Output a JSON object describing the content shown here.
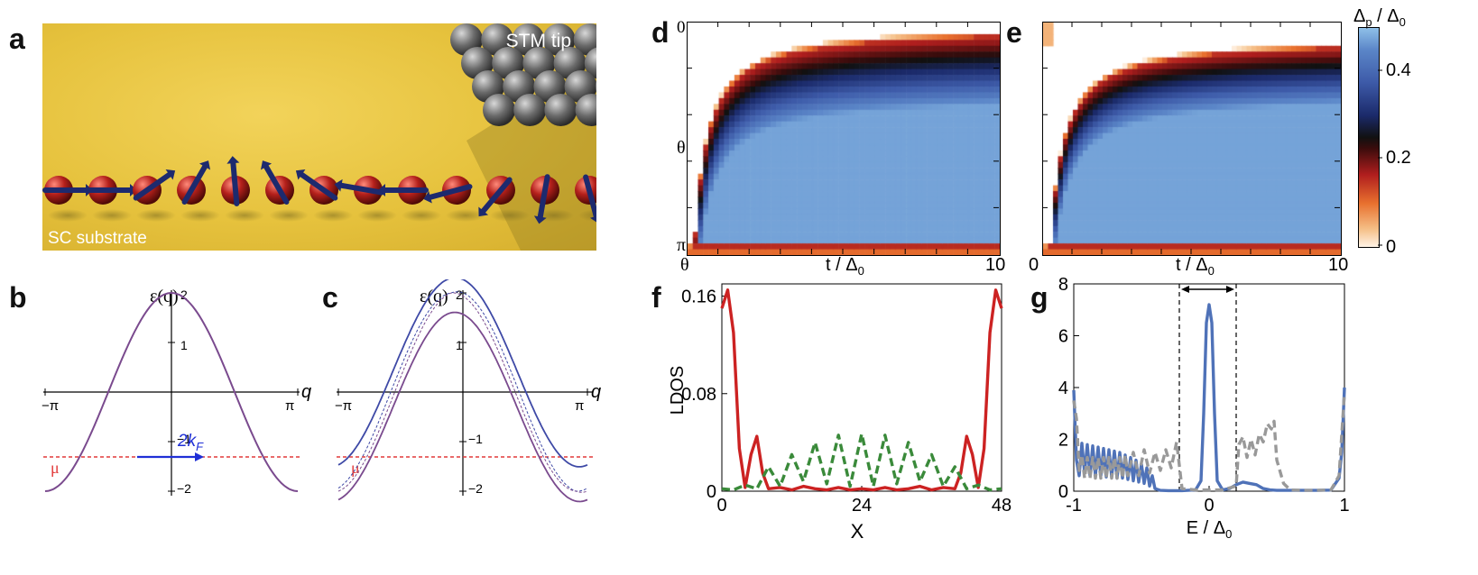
{
  "panels": {
    "a": "a",
    "b": "b",
    "c": "c",
    "d": "d",
    "e": "e",
    "f": "f",
    "g": "g"
  },
  "panel_a": {
    "tip_label": "STM tip",
    "substrate_label": "SC substrate",
    "spin_angles_deg": [
      0,
      0,
      35,
      60,
      95,
      120,
      145,
      170,
      180,
      195,
      230,
      260,
      285
    ]
  },
  "panel_b": {
    "ylabel": "ε(q)",
    "xlabel": "q",
    "x_ticks": [
      "−π",
      "π"
    ],
    "y_ticks": [
      "2",
      "1",
      "−1",
      "−2"
    ],
    "mu_label": "μ",
    "kf_label": "2k",
    "kf_sub": "F",
    "mu_value": -1.3
  },
  "panel_c": {
    "ylabel": "ε(q)",
    "xlabel": "q",
    "x_ticks": [
      "−π",
      "π"
    ],
    "y_ticks": [
      "2",
      "1",
      "−1",
      "−2"
    ],
    "mu_label": "μ",
    "mu_value": -1.3
  },
  "colorbar": {
    "title": "Δ",
    "title_sub1": "p",
    "title_mid": " / Δ",
    "title_sub2": "0",
    "ticks": [
      "0.4",
      "0.2",
      "0"
    ]
  },
  "panel_d": {
    "y_ticks": [
      "0",
      "θ",
      "π"
    ],
    "x_ticks": [
      "θ",
      "10"
    ],
    "xlabel": "t / Δ",
    "xlabel_sub": "0"
  },
  "panel_e": {
    "x_ticks": [
      "0",
      "10"
    ],
    "xlabel": "t / Δ",
    "xlabel_sub": "0"
  },
  "chart_data": [
    {
      "type": "line",
      "title": "f",
      "xlabel": "X",
      "ylabel": "LDOS",
      "x_ticks": [
        "0",
        "24",
        "48"
      ],
      "y_ticks": [
        "0",
        "0.08",
        "0.16"
      ],
      "xlim": [
        0,
        48
      ],
      "ylim": [
        0,
        0.17
      ],
      "series": [
        {
          "name": "red-solid",
          "color": "#cc2222",
          "style": "solid",
          "x": [
            0,
            1,
            2,
            3,
            4,
            5,
            6,
            7,
            8,
            10,
            12,
            14,
            16,
            18,
            20,
            22,
            24,
            26,
            28,
            30,
            32,
            34,
            36,
            38,
            40,
            41,
            42,
            43,
            44,
            45,
            46,
            47,
            48
          ],
          "values": [
            0.15,
            0.165,
            0.13,
            0.035,
            0.003,
            0.03,
            0.045,
            0.015,
            0.002,
            0.003,
            0.001,
            0.004,
            0.002,
            0.001,
            0.003,
            0.001,
            0.002,
            0.001,
            0.003,
            0.001,
            0.002,
            0.004,
            0.001,
            0.003,
            0.002,
            0.015,
            0.045,
            0.03,
            0.003,
            0.035,
            0.13,
            0.165,
            0.15
          ]
        },
        {
          "name": "green-dashed",
          "color": "#3a8a3a",
          "style": "dashed",
          "x": [
            0,
            2,
            4,
            6,
            8,
            10,
            12,
            14,
            16,
            18,
            20,
            22,
            24,
            26,
            28,
            30,
            32,
            34,
            36,
            38,
            40,
            42,
            44,
            46,
            48
          ],
          "values": [
            0.002,
            0.001,
            0.005,
            0.002,
            0.02,
            0.004,
            0.03,
            0.008,
            0.04,
            0.006,
            0.046,
            0.004,
            0.047,
            0.004,
            0.046,
            0.006,
            0.04,
            0.008,
            0.03,
            0.004,
            0.02,
            0.002,
            0.005,
            0.001,
            0.002
          ]
        }
      ]
    },
    {
      "type": "line",
      "title": "g",
      "xlabel": "E / Δ",
      "xlabel_sub": "0",
      "ylabel": "",
      "x_ticks": [
        "-1",
        "0",
        "1"
      ],
      "y_ticks": [
        "0",
        "2",
        "4",
        "6",
        "8"
      ],
      "xlim": [
        -1,
        1
      ],
      "ylim": [
        0,
        8
      ],
      "gap_markers": [
        -0.22,
        0.2
      ],
      "series": [
        {
          "name": "blue-solid",
          "color": "#4f72b8",
          "style": "solid",
          "x": [
            -1,
            -0.98,
            -0.96,
            -0.94,
            -0.92,
            -0.9,
            -0.88,
            -0.86,
            -0.84,
            -0.82,
            -0.8,
            -0.78,
            -0.76,
            -0.74,
            -0.72,
            -0.7,
            -0.68,
            -0.66,
            -0.64,
            -0.62,
            -0.6,
            -0.58,
            -0.56,
            -0.54,
            -0.52,
            -0.5,
            -0.48,
            -0.46,
            -0.44,
            -0.42,
            -0.4,
            -0.36,
            -0.3,
            -0.2,
            -0.1,
            -0.06,
            -0.04,
            -0.02,
            0,
            0.02,
            0.04,
            0.06,
            0.1,
            0.15,
            0.2,
            0.25,
            0.3,
            0.35,
            0.4,
            0.45,
            0.5,
            0.6,
            0.7,
            0.8,
            0.9,
            0.96,
            0.98,
            1
          ],
          "values": [
            3.9,
            1.2,
            0.6,
            1.85,
            0.7,
            1.8,
            0.6,
            1.75,
            0.6,
            1.7,
            0.6,
            1.65,
            0.55,
            1.6,
            0.55,
            1.55,
            0.5,
            1.5,
            0.5,
            1.4,
            0.45,
            1.3,
            0.4,
            1.2,
            0.35,
            1.05,
            0.3,
            0.9,
            0.2,
            0.6,
            0.1,
            0.03,
            0.02,
            0.02,
            0.05,
            0.4,
            3.0,
            6.5,
            7.2,
            6.5,
            3.0,
            0.4,
            0.05,
            0.1,
            0.25,
            0.35,
            0.3,
            0.25,
            0.1,
            0.05,
            0.03,
            0.03,
            0.03,
            0.03,
            0.04,
            0.5,
            1.5,
            4.0
          ]
        },
        {
          "name": "grey-dashed",
          "color": "#999999",
          "style": "dashed",
          "x": [
            -1,
            -0.98,
            -0.96,
            -0.94,
            -0.92,
            -0.9,
            -0.88,
            -0.86,
            -0.84,
            -0.82,
            -0.8,
            -0.78,
            -0.76,
            -0.74,
            -0.72,
            -0.7,
            -0.68,
            -0.66,
            -0.64,
            -0.62,
            -0.6,
            -0.56,
            -0.52,
            -0.48,
            -0.44,
            -0.4,
            -0.36,
            -0.32,
            -0.28,
            -0.24,
            -0.2,
            -0.1,
            0,
            0.1,
            0.2,
            0.22,
            0.25,
            0.28,
            0.31,
            0.34,
            0.37,
            0.4,
            0.43,
            0.46,
            0.48,
            0.5,
            0.55,
            0.6,
            0.7,
            0.8,
            0.9,
            0.96,
            1
          ],
          "values": [
            3.5,
            2.8,
            0.8,
            1.4,
            0.5,
            1.3,
            0.5,
            1.3,
            0.5,
            1.3,
            0.5,
            1.3,
            0.5,
            1.3,
            0.5,
            1.3,
            0.5,
            1.3,
            0.5,
            1.4,
            0.6,
            1.5,
            0.6,
            1.6,
            0.7,
            1.5,
            0.8,
            1.6,
            0.9,
            1.9,
            0.1,
            0.05,
            0.05,
            0.05,
            0.2,
            1.8,
            2.1,
            1.3,
            2.0,
            1.4,
            2.2,
            1.9,
            2.6,
            2.4,
            2.7,
            1.2,
            0.3,
            0.05,
            0.03,
            0.03,
            0.05,
            0.6,
            3.8
          ]
        }
      ]
    }
  ],
  "colors": {
    "band": "#7a4a8e",
    "band_upper": "#3e49a6",
    "mu_line": "#e23a3a",
    "kf_arrow": "#1f2fd6"
  }
}
